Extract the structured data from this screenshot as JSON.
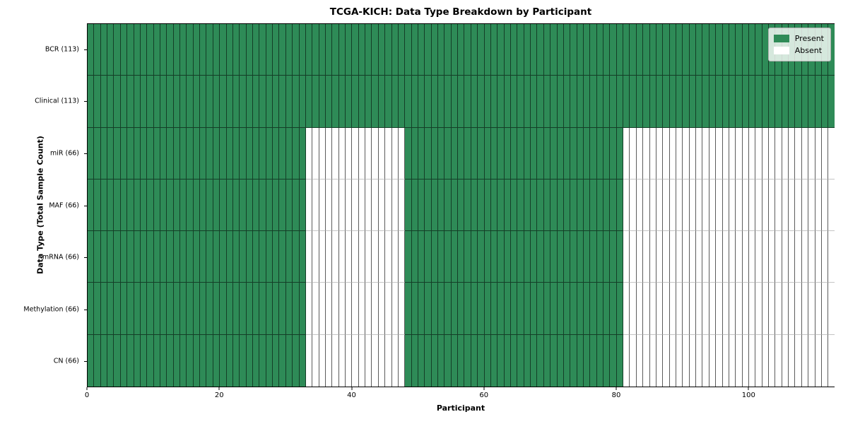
{
  "chart_data": {
    "type": "heatmap",
    "title": "TCGA-KICH: Data Type Breakdown by Participant",
    "xlabel": "Participant",
    "ylabel": "Data Type (Total Sample Count)",
    "x_ticks": [
      0,
      20,
      40,
      60,
      80,
      100
    ],
    "x_range": [
      0,
      113
    ],
    "n_participants": 113,
    "grid": true,
    "rows": [
      {
        "data_type": "BCR",
        "label": "BCR (113)",
        "total_samples": 113,
        "present_ranges": [
          [
            0,
            113
          ]
        ]
      },
      {
        "data_type": "Clinical",
        "label": "Clinical (113)",
        "total_samples": 113,
        "present_ranges": [
          [
            0,
            113
          ]
        ]
      },
      {
        "data_type": "miR",
        "label": "miR (66)",
        "total_samples": 66,
        "present_ranges": [
          [
            0,
            33
          ],
          [
            48,
            81
          ]
        ]
      },
      {
        "data_type": "MAF",
        "label": "MAF (66)",
        "total_samples": 66,
        "present_ranges": [
          [
            0,
            33
          ],
          [
            48,
            81
          ]
        ]
      },
      {
        "data_type": "mRNA",
        "label": "mRNA (66)",
        "total_samples": 66,
        "present_ranges": [
          [
            0,
            33
          ],
          [
            48,
            81
          ]
        ]
      },
      {
        "data_type": "Methylation",
        "label": "Methylation (66)",
        "total_samples": 66,
        "present_ranges": [
          [
            0,
            33
          ],
          [
            48,
            81
          ]
        ]
      },
      {
        "data_type": "CN",
        "label": "CN (66)",
        "total_samples": 66,
        "present_ranges": [
          [
            0,
            33
          ],
          [
            48,
            81
          ]
        ]
      }
    ],
    "legend": {
      "position": "upper right",
      "items": [
        {
          "label": "Present",
          "color": "#2e8b57"
        },
        {
          "label": "Absent",
          "color": "#ffffff"
        }
      ]
    },
    "colors": {
      "present": "#2e8b57",
      "absent": "#ffffff",
      "plot_border": "#000000"
    }
  }
}
